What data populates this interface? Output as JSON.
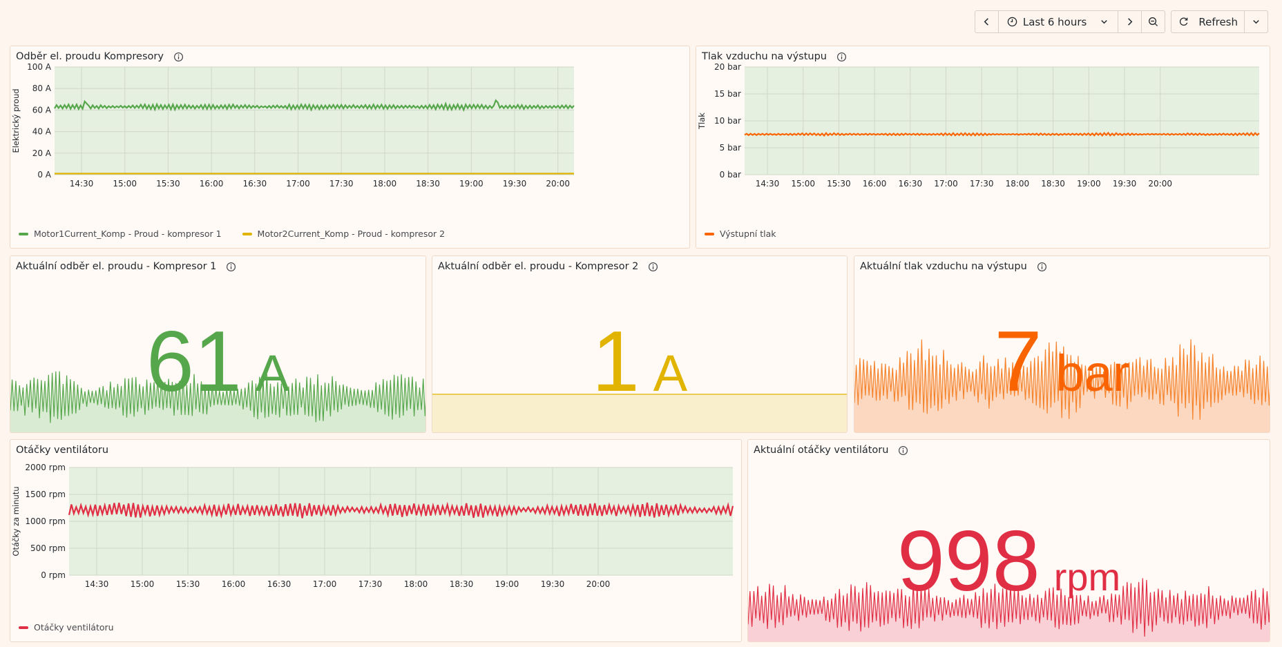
{
  "toolbar": {
    "time_range": "Last 6 hours",
    "refresh": "Refresh"
  },
  "colors": {
    "green": "#56a64b",
    "yellow": "#e0b400",
    "orange": "#fa6400",
    "red": "#e02f44"
  },
  "panels": {
    "current_chart": {
      "title": "Odběr el. proudu Kompresory",
      "chart_data": {
        "type": "line",
        "ylabel": "Elektrický proud",
        "ylim": [
          0,
          100
        ],
        "yticks": [
          "0 A",
          "20 A",
          "40 A",
          "60 A",
          "80 A",
          "100 A"
        ],
        "xticks": [
          "14:30",
          "15:00",
          "15:30",
          "16:00",
          "16:30",
          "17:00",
          "17:30",
          "18:00",
          "18:30",
          "19:00",
          "19:30",
          "20:00"
        ],
        "series": [
          {
            "name": "Motor1Current_Komp - Proud - kompresor 1",
            "value_around": 63,
            "color": "#56a64b"
          },
          {
            "name": "Motor2Current_Komp - Proud - kompresor 2",
            "value_around": 1,
            "color": "#e0b400"
          }
        ]
      }
    },
    "pressure_chart": {
      "title": "Tlak vzduchu na výstupu",
      "chart_data": {
        "type": "line",
        "ylabel": "Tlak",
        "ylim": [
          0,
          20
        ],
        "yticks": [
          "0 bar",
          "5 bar",
          "10 bar",
          "15 bar",
          "20 bar"
        ],
        "xticks": [
          "14:30",
          "15:00",
          "15:30",
          "16:00",
          "16:30",
          "17:00",
          "17:30",
          "18:00",
          "18:30",
          "19:00",
          "19:30",
          "20:00"
        ],
        "series": [
          {
            "name": "Výstupní tlak",
            "value_around": 7.5,
            "color": "#fa6400"
          }
        ]
      }
    },
    "stat_k1": {
      "title": "Aktuální odběr el. proudu - Kompresor 1",
      "value": "61",
      "unit": "A"
    },
    "stat_k2": {
      "title": "Aktuální odběr el. proudu - Kompresor 2",
      "value": "1",
      "unit": "A"
    },
    "stat_pressure": {
      "title": "Aktuální tlak vzduchu na výstupu",
      "value": "7",
      "unit": "bar"
    },
    "fan_chart": {
      "title": "Otáčky ventilátoru",
      "chart_data": {
        "type": "line",
        "ylabel": "Otáčky za minutu",
        "ylim": [
          0,
          2000
        ],
        "yticks": [
          "0 rpm",
          "500 rpm",
          "1000 rpm",
          "1500 rpm",
          "2000 rpm"
        ],
        "xticks": [
          "14:30",
          "15:00",
          "15:30",
          "16:00",
          "16:30",
          "17:00",
          "17:30",
          "18:00",
          "18:30",
          "19:00",
          "19:30",
          "20:00"
        ],
        "series": [
          {
            "name": "Otáčky ventilátoru",
            "value_around": 1200,
            "color": "#e02f44"
          }
        ]
      }
    },
    "stat_fan": {
      "title": "Aktuální otáčky ventilátoru",
      "value": "998",
      "unit": "rpm"
    }
  }
}
